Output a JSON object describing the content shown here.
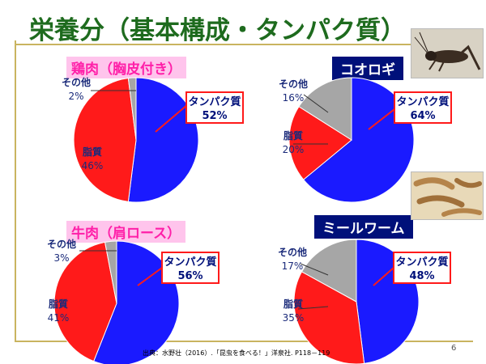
{
  "title": "栄養分（基本構成・タンパク質）",
  "footer": "出典：水野壮（2016）.「昆虫を食べる！」洋泉社. P118－119",
  "page_number": "6",
  "colors": {
    "protein": "#1a1aff",
    "fat": "#ff1a1a",
    "other": "#a6a6a6",
    "title": "#1e6b1e",
    "pink_label": "#ff1fa8",
    "navy_label": "#00107a"
  },
  "chart_data": [
    {
      "type": "pie",
      "title": "鶏肉（胸皮付き）",
      "slices": [
        {
          "label": "タンパク質",
          "value": 52,
          "value_label": "52%",
          "color": "#1a1aff"
        },
        {
          "label": "脂質",
          "value": 46,
          "value_label": "46%",
          "color": "#ff1a1a"
        },
        {
          "label": "その他",
          "value": 2,
          "value_label": "2%",
          "color": "#a6a6a6"
        }
      ]
    },
    {
      "type": "pie",
      "title": "コオロギ",
      "slices": [
        {
          "label": "タンパク質",
          "value": 64,
          "value_label": "64%",
          "color": "#1a1aff"
        },
        {
          "label": "脂質",
          "value": 20,
          "value_label": "20%",
          "color": "#ff1a1a"
        },
        {
          "label": "その他",
          "value": 16,
          "value_label": "16%",
          "color": "#a6a6a6"
        }
      ]
    },
    {
      "type": "pie",
      "title": "牛肉（肩ロース）",
      "slices": [
        {
          "label": "タンパク質",
          "value": 56,
          "value_label": "56%",
          "color": "#1a1aff"
        },
        {
          "label": "脂質",
          "value": 41,
          "value_label": "41%",
          "color": "#ff1a1a"
        },
        {
          "label": "その他",
          "value": 3,
          "value_label": "3%",
          "color": "#a6a6a6"
        }
      ]
    },
    {
      "type": "pie",
      "title": "ミールワーム",
      "slices": [
        {
          "label": "タンパク質",
          "value": 48,
          "value_label": "48%",
          "color": "#1a1aff"
        },
        {
          "label": "脂質",
          "value": 35,
          "value_label": "35%",
          "color": "#ff1a1a"
        },
        {
          "label": "その他",
          "value": 17,
          "value_label": "17%",
          "color": "#a6a6a6"
        }
      ]
    }
  ]
}
